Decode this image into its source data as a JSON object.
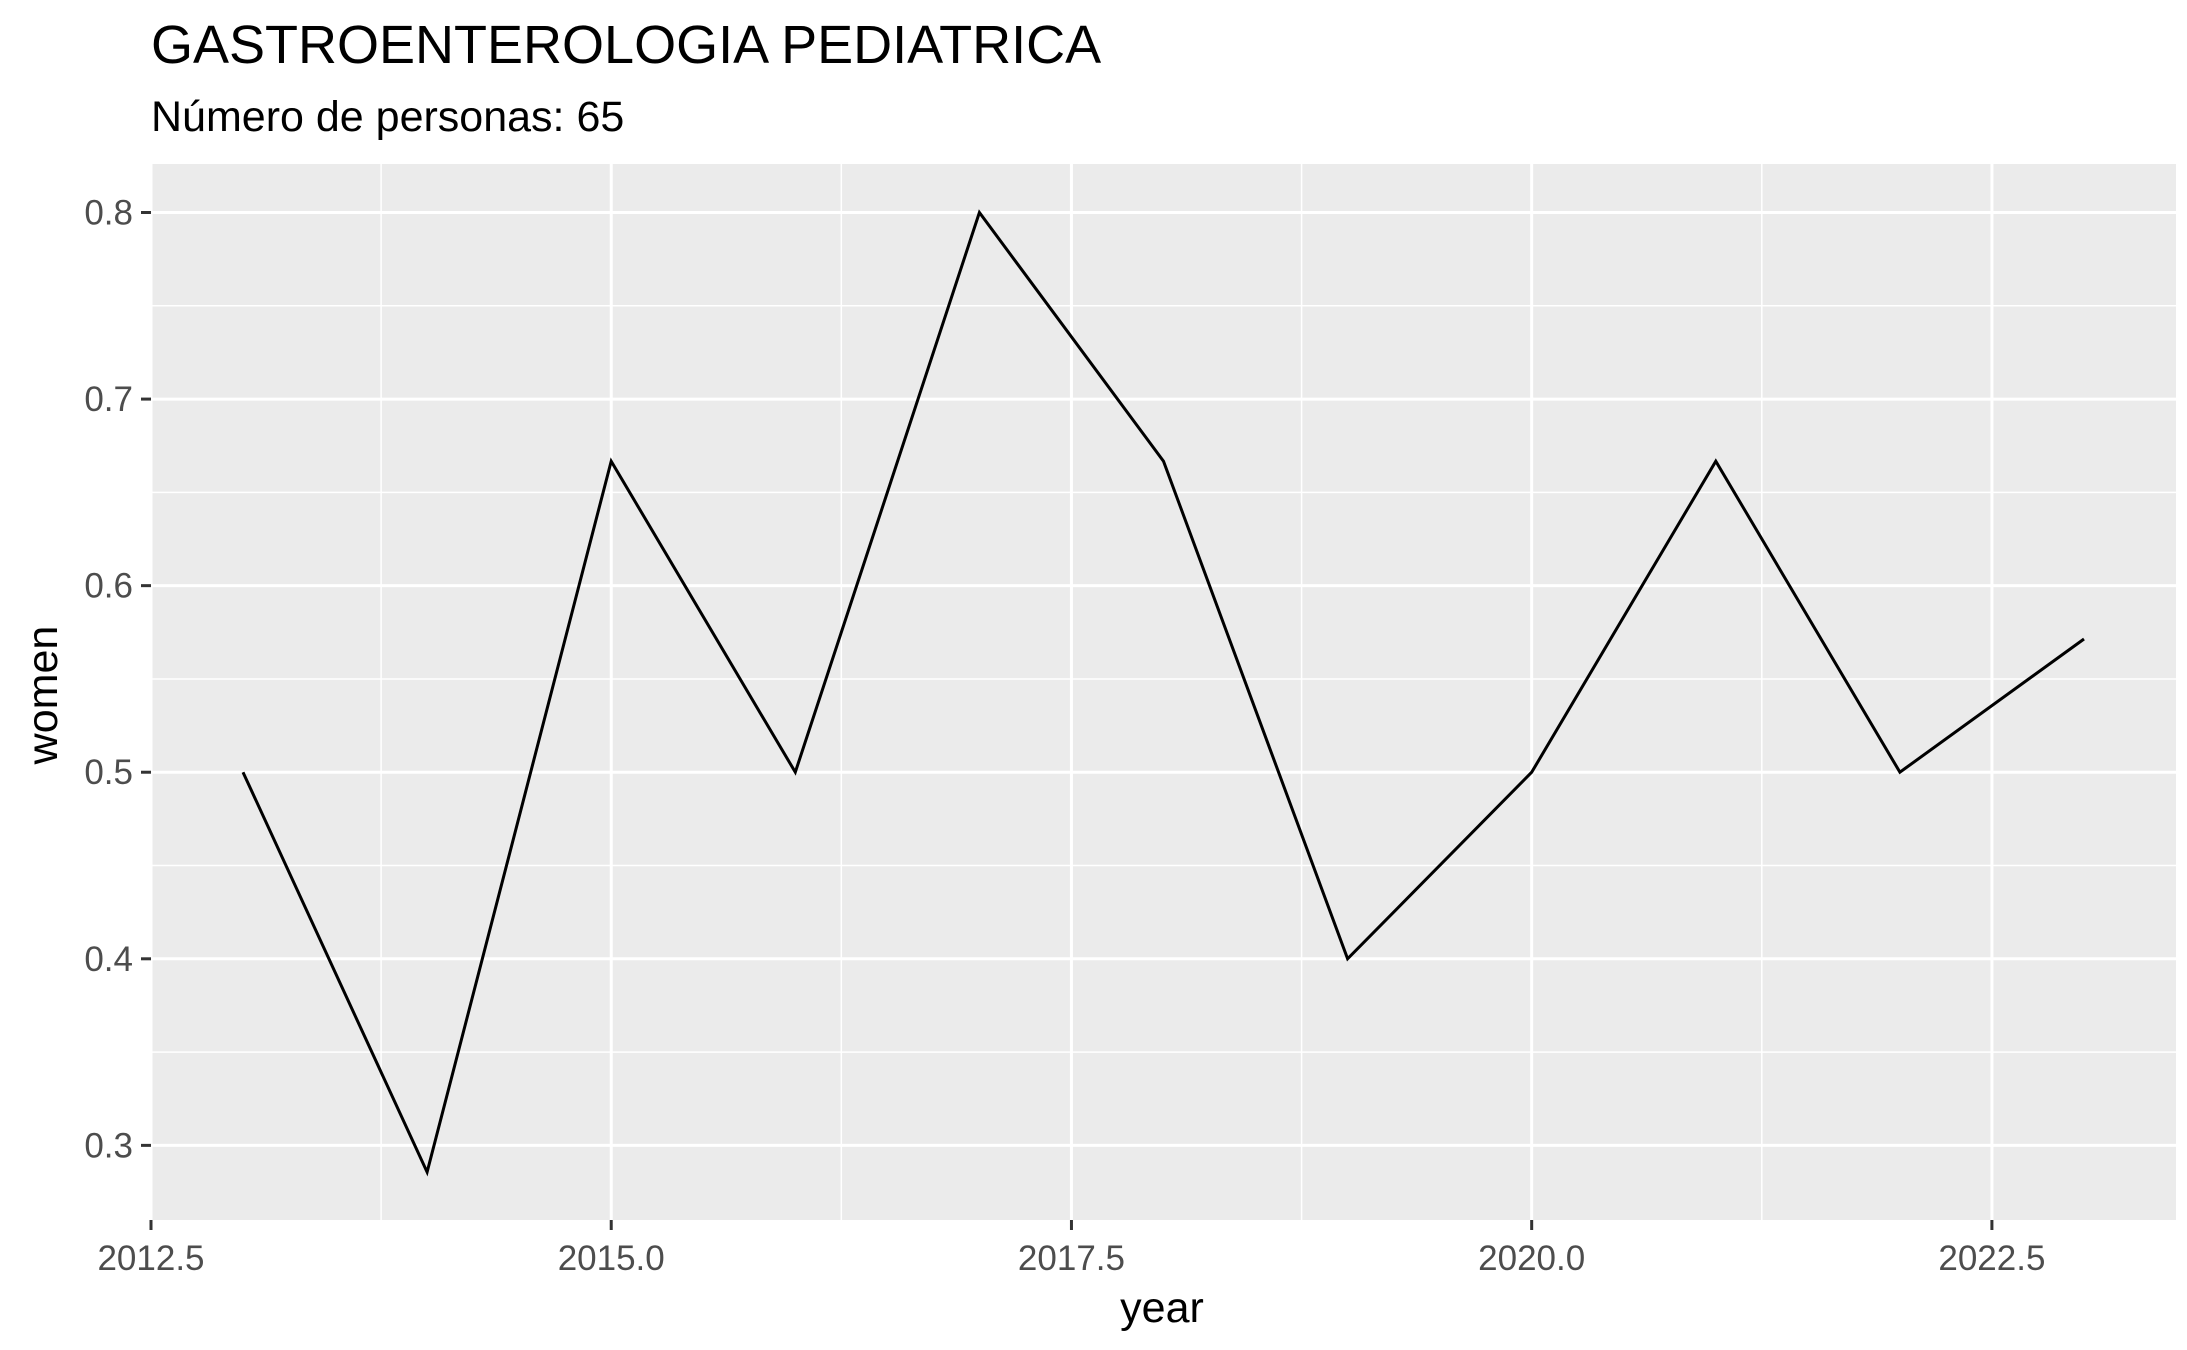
{
  "chart_data": {
    "type": "line",
    "title": "GASTROENTEROLOGIA PEDIATRICA",
    "subtitle": "Número de personas: 65",
    "xlabel": "year",
    "ylabel": "women",
    "x": [
      2013,
      2014,
      2015,
      2016,
      2017,
      2018,
      2019,
      2020,
      2021,
      2022,
      2023
    ],
    "series": [
      {
        "values": [
          0.5,
          0.2857,
          0.6667,
          0.5,
          0.8,
          0.6667,
          0.4,
          0.5,
          0.6667,
          0.5,
          0.5714
        ]
      }
    ],
    "xlim": [
      2012.5,
      2023.5
    ],
    "ylim": [
      0.26,
      0.826
    ],
    "x_ticks": [
      2012.5,
      2015.0,
      2017.5,
      2020.0,
      2022.5
    ],
    "x_tick_labels": [
      "2012.5",
      "2015.0",
      "2017.5",
      "2020.0",
      "2022.5"
    ],
    "y_ticks": [
      0.3,
      0.4,
      0.5,
      0.6,
      0.7,
      0.8
    ],
    "y_tick_labels": [
      "0.3",
      "0.4",
      "0.5",
      "0.6",
      "0.7",
      "0.8"
    ],
    "grid": true,
    "legend": "none",
    "colors": {
      "panel_background": "#ebebeb",
      "grid": "#ffffff",
      "line": "#000000",
      "tick_text": "#4d4d4d",
      "tick_mark": "#333333"
    }
  }
}
